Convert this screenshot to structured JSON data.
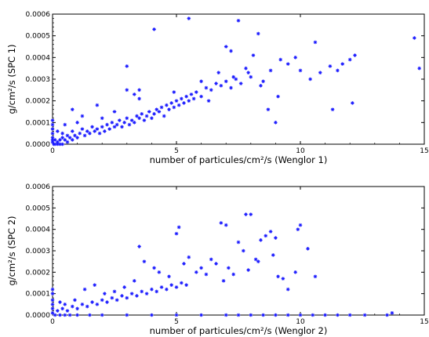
{
  "chart_data": [
    {
      "type": "scatter",
      "xlabel": "number of particules/cm²/s (Wenglor 1)",
      "ylabel": "g/cm²/s (SPC 1)",
      "xlim": [
        0,
        15
      ],
      "ylim": [
        0,
        0.0006
      ],
      "xticks": [
        "0",
        "5",
        "10",
        "15"
      ],
      "yticks": [
        "0.0000",
        "0.0001",
        "0.0002",
        "0.0003",
        "0.0004",
        "0.0005",
        "0.0006"
      ],
      "marker": "star",
      "color": "#1a1aff",
      "points": [
        [
          0.0,
          1e-05
        ],
        [
          0.0,
          2e-05
        ],
        [
          0.0,
          3e-05
        ],
        [
          0.0,
          5e-05
        ],
        [
          0.0,
          7e-05
        ],
        [
          0.0,
          9e-05
        ],
        [
          0.0,
          0.00011
        ],
        [
          0.05,
          0.0
        ],
        [
          0.1,
          0.0
        ],
        [
          0.2,
          0.0
        ],
        [
          0.3,
          0.0
        ],
        [
          0.4,
          0.0
        ],
        [
          0.1,
          2e-05
        ],
        [
          0.2,
          1e-05
        ],
        [
          0.3,
          2e-05
        ],
        [
          0.4,
          3e-05
        ],
        [
          0.5,
          2e-05
        ],
        [
          0.6,
          1e-05
        ],
        [
          0.7,
          3e-05
        ],
        [
          0.8,
          2e-05
        ],
        [
          0.9,
          4e-05
        ],
        [
          1.0,
          3e-05
        ],
        [
          0.2,
          6e-05
        ],
        [
          0.4,
          5e-05
        ],
        [
          0.6,
          4e-05
        ],
        [
          0.8,
          6e-05
        ],
        [
          1.1,
          5e-05
        ],
        [
          1.2,
          7e-05
        ],
        [
          1.3,
          4e-05
        ],
        [
          1.4,
          6e-05
        ],
        [
          1.5,
          5e-05
        ],
        [
          1.6,
          8e-05
        ],
        [
          1.7,
          6e-05
        ],
        [
          1.8,
          7e-05
        ],
        [
          1.9,
          5e-05
        ],
        [
          2.0,
          8e-05
        ],
        [
          2.1,
          6e-05
        ],
        [
          2.2,
          9e-05
        ],
        [
          2.3,
          7e-05
        ],
        [
          2.4,
          0.0001
        ],
        [
          2.5,
          8e-05
        ],
        [
          2.6,
          9e-05
        ],
        [
          2.7,
          0.00011
        ],
        [
          2.8,
          8e-05
        ],
        [
          2.9,
          0.0001
        ],
        [
          3.0,
          0.00012
        ],
        [
          3.1,
          9e-05
        ],
        [
          3.2,
          0.00011
        ],
        [
          3.3,
          0.0001
        ],
        [
          3.4,
          0.00013
        ],
        [
          3.5,
          0.00012
        ],
        [
          3.6,
          0.00014
        ],
        [
          3.7,
          0.00011
        ],
        [
          3.8,
          0.00013
        ],
        [
          3.9,
          0.00015
        ],
        [
          4.0,
          0.00012
        ],
        [
          4.1,
          0.00014
        ],
        [
          4.2,
          0.00016
        ],
        [
          4.3,
          0.00015
        ],
        [
          4.4,
          0.00017
        ],
        [
          4.5,
          0.00013
        ],
        [
          4.6,
          0.00018
        ],
        [
          4.7,
          0.00016
        ],
        [
          4.8,
          0.00019
        ],
        [
          4.9,
          0.00017
        ],
        [
          5.0,
          0.0002
        ],
        [
          5.1,
          0.00018
        ],
        [
          5.2,
          0.00021
        ],
        [
          5.3,
          0.00019
        ],
        [
          5.4,
          0.00022
        ],
        [
          5.5,
          0.0002
        ],
        [
          5.6,
          0.00023
        ],
        [
          5.8,
          0.00024
        ],
        [
          6.0,
          0.00022
        ],
        [
          6.2,
          0.00026
        ],
        [
          6.4,
          0.00025
        ],
        [
          6.6,
          0.00028
        ],
        [
          6.8,
          0.00027
        ],
        [
          7.0,
          0.00029
        ],
        [
          7.2,
          0.00026
        ],
        [
          7.4,
          0.0003
        ],
        [
          7.6,
          0.00028
        ],
        [
          0.8,
          0.00016
        ],
        [
          1.2,
          0.00013
        ],
        [
          1.8,
          0.00018
        ],
        [
          2.0,
          0.00012
        ],
        [
          2.5,
          0.00015
        ],
        [
          3.0,
          0.00025
        ],
        [
          3.3,
          0.00023
        ],
        [
          3.5,
          0.00021
        ],
        [
          0.5,
          9e-05
        ],
        [
          1.0,
          0.0001
        ],
        [
          3.0,
          0.00036
        ],
        [
          3.5,
          0.00025
        ],
        [
          4.1,
          0.00053
        ],
        [
          5.5,
          0.00058
        ],
        [
          6.0,
          0.00029
        ],
        [
          7.0,
          0.00045
        ],
        [
          7.2,
          0.00043
        ],
        [
          7.5,
          0.00057
        ],
        [
          7.8,
          0.00035
        ],
        [
          7.9,
          0.00033
        ],
        [
          8.1,
          0.00041
        ],
        [
          8.3,
          0.00051
        ],
        [
          8.5,
          0.00029
        ],
        [
          8.7,
          0.00016
        ],
        [
          8.8,
          0.00034
        ],
        [
          9.0,
          0.0001
        ],
        [
          9.2,
          0.00039
        ],
        [
          9.5,
          0.00037
        ],
        [
          9.8,
          0.0004
        ],
        [
          10.0,
          0.00034
        ],
        [
          10.4,
          0.0003
        ],
        [
          10.6,
          0.00047
        ],
        [
          10.8,
          0.00033
        ],
        [
          11.2,
          0.00036
        ],
        [
          11.3,
          0.00016
        ],
        [
          11.5,
          0.00034
        ],
        [
          11.7,
          0.00037
        ],
        [
          12.0,
          0.00039
        ],
        [
          12.1,
          0.00019
        ],
        [
          12.2,
          0.00041
        ],
        [
          14.6,
          0.00049
        ],
        [
          14.8,
          0.00035
        ],
        [
          8.0,
          0.00031
        ],
        [
          8.4,
          0.00027
        ],
        [
          9.1,
          0.00022
        ],
        [
          6.7,
          0.00033
        ],
        [
          7.3,
          0.00031
        ],
        [
          4.9,
          0.00024
        ],
        [
          5.7,
          0.00021
        ],
        [
          6.3,
          0.0002
        ]
      ]
    },
    {
      "type": "scatter",
      "xlabel": "number of particules/cm²/s (Wenglor 2)",
      "ylabel": "g/cm²/s (SPC 2)",
      "xlim": [
        0,
        15
      ],
      "ylim": [
        0,
        0.0006
      ],
      "xticks": [
        "0",
        "5",
        "10",
        "15"
      ],
      "yticks": [
        "0.0000",
        "0.0001",
        "0.0002",
        "0.0003",
        "0.0004",
        "0.0005",
        "0.0006"
      ],
      "marker": "star",
      "color": "#1a1aff",
      "points": [
        [
          0.0,
          1e-05
        ],
        [
          0.0,
          3e-05
        ],
        [
          0.0,
          5e-05
        ],
        [
          0.0,
          7e-05
        ],
        [
          0.0,
          0.0001
        ],
        [
          0.0,
          0.00012
        ],
        [
          0.1,
          0.0
        ],
        [
          0.3,
          0.0
        ],
        [
          0.5,
          0.0
        ],
        [
          0.7,
          0.0
        ],
        [
          1.0,
          0.0
        ],
        [
          1.5,
          0.0
        ],
        [
          2.0,
          0.0
        ],
        [
          3.0,
          0.0
        ],
        [
          4.0,
          0.0
        ],
        [
          5.0,
          0.0
        ],
        [
          6.0,
          0.0
        ],
        [
          7.0,
          0.0
        ],
        [
          7.5,
          0.0
        ],
        [
          8.0,
          0.0
        ],
        [
          8.5,
          0.0
        ],
        [
          9.0,
          0.0
        ],
        [
          9.5,
          0.0
        ],
        [
          10.0,
          0.0
        ],
        [
          10.5,
          0.0
        ],
        [
          11.0,
          0.0
        ],
        [
          11.5,
          0.0
        ],
        [
          12.0,
          0.0
        ],
        [
          12.6,
          0.0
        ],
        [
          13.5,
          0.0
        ],
        [
          13.7,
          1e-05
        ],
        [
          0.2,
          2e-05
        ],
        [
          0.4,
          3e-05
        ],
        [
          0.6,
          2e-05
        ],
        [
          0.8,
          4e-05
        ],
        [
          1.0,
          3e-05
        ],
        [
          1.2,
          5e-05
        ],
        [
          1.4,
          4e-05
        ],
        [
          1.6,
          6e-05
        ],
        [
          1.8,
          5e-05
        ],
        [
          2.0,
          7e-05
        ],
        [
          2.2,
          6e-05
        ],
        [
          2.4,
          8e-05
        ],
        [
          2.6,
          7e-05
        ],
        [
          2.8,
          9e-05
        ],
        [
          3.0,
          8e-05
        ],
        [
          3.2,
          0.0001
        ],
        [
          3.4,
          9e-05
        ],
        [
          3.6,
          0.00011
        ],
        [
          3.8,
          0.0001
        ],
        [
          4.0,
          0.00012
        ],
        [
          4.2,
          0.00011
        ],
        [
          4.4,
          0.00013
        ],
        [
          4.6,
          0.00012
        ],
        [
          4.8,
          0.00014
        ],
        [
          5.0,
          0.00013
        ],
        [
          5.2,
          0.00015
        ],
        [
          5.4,
          0.00014
        ],
        [
          0.3,
          6e-05
        ],
        [
          0.5,
          5e-05
        ],
        [
          0.9,
          7e-05
        ],
        [
          1.3,
          0.00012
        ],
        [
          1.7,
          0.00014
        ],
        [
          2.1,
          0.0001
        ],
        [
          2.5,
          0.00011
        ],
        [
          2.9,
          0.00013
        ],
        [
          3.3,
          0.00016
        ],
        [
          3.5,
          0.00032
        ],
        [
          3.7,
          0.00025
        ],
        [
          4.1,
          0.00022
        ],
        [
          4.3,
          0.0002
        ],
        [
          4.7,
          0.00018
        ],
        [
          5.0,
          0.00038
        ],
        [
          5.1,
          0.00041
        ],
        [
          5.3,
          0.00024
        ],
        [
          5.5,
          0.00027
        ],
        [
          5.8,
          0.0002
        ],
        [
          6.0,
          0.00022
        ],
        [
          6.2,
          0.00019
        ],
        [
          6.4,
          0.00026
        ],
        [
          6.6,
          0.00024
        ],
        [
          6.8,
          0.00043
        ],
        [
          7.0,
          0.00042
        ],
        [
          7.1,
          0.00022
        ],
        [
          7.3,
          0.00019
        ],
        [
          7.5,
          0.00034
        ],
        [
          7.7,
          0.0003
        ],
        [
          7.8,
          0.00047
        ],
        [
          8.0,
          0.00047
        ],
        [
          8.2,
          0.00026
        ],
        [
          8.4,
          0.00035
        ],
        [
          8.6,
          0.00037
        ],
        [
          8.8,
          0.00039
        ],
        [
          9.0,
          0.00036
        ],
        [
          9.1,
          0.00018
        ],
        [
          9.3,
          0.00017
        ],
        [
          9.5,
          0.00012
        ],
        [
          9.8,
          0.0002
        ],
        [
          9.9,
          0.0004
        ],
        [
          10.0,
          0.00042
        ],
        [
          10.3,
          0.00031
        ],
        [
          10.6,
          0.00018
        ],
        [
          8.3,
          0.00025
        ],
        [
          8.9,
          0.00028
        ],
        [
          6.9,
          0.00016
        ],
        [
          7.9,
          0.00021
        ]
      ]
    }
  ]
}
